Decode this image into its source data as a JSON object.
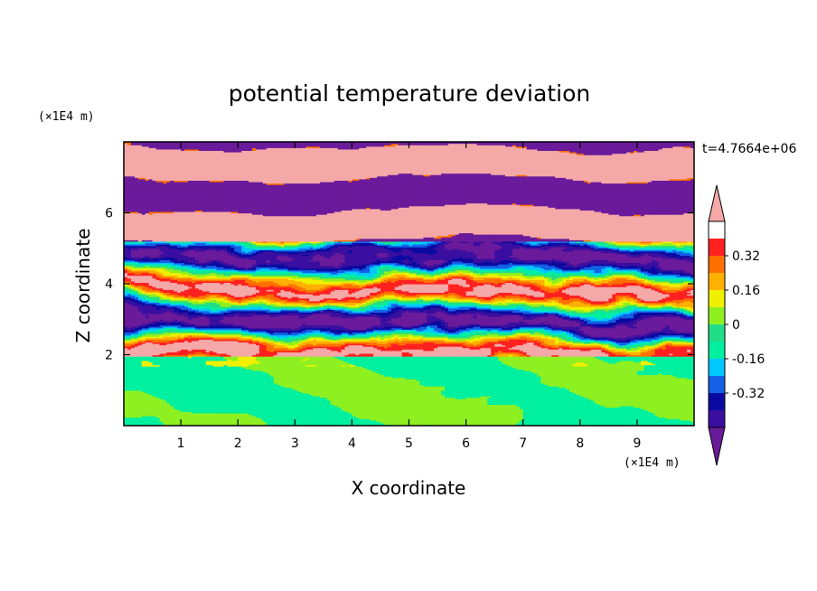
{
  "chart_data": {
    "type": "heatmap",
    "title": "potential temperature deviation",
    "xlabel": "X coordinate",
    "ylabel": "Z coordinate",
    "x_unit": "(×1E4 m)",
    "y_unit": "(×1E4 m)",
    "time_label": "t=4.7664e+06",
    "xlim": [
      0,
      10
    ],
    "ylim": [
      0,
      8
    ],
    "x_ticks": [
      "1",
      "2",
      "3",
      "4",
      "5",
      "6",
      "7",
      "8",
      "9"
    ],
    "y_ticks": [
      "2",
      "4",
      "6"
    ],
    "colorbar": {
      "levels": [
        -0.48,
        -0.4,
        -0.32,
        -0.24,
        -0.16,
        -0.08,
        0,
        0.08,
        0.16,
        0.24,
        0.32,
        0.4,
        0.48
      ],
      "tick_labels": [
        "0.32",
        "0.16",
        "0",
        "-0.16",
        "-0.32"
      ],
      "tick_values": [
        0.32,
        0.16,
        0,
        -0.16,
        -0.32
      ],
      "colors": [
        "#6a1b9a",
        "#3a0fa0",
        "#0a0aa0",
        "#1460e6",
        "#00c8ff",
        "#00f0a0",
        "#22dd88",
        "#8ef020",
        "#f0f000",
        "#ffb000",
        "#ff7000",
        "#ff2020",
        "#f5a8a8"
      ],
      "extend": "both"
    }
  }
}
